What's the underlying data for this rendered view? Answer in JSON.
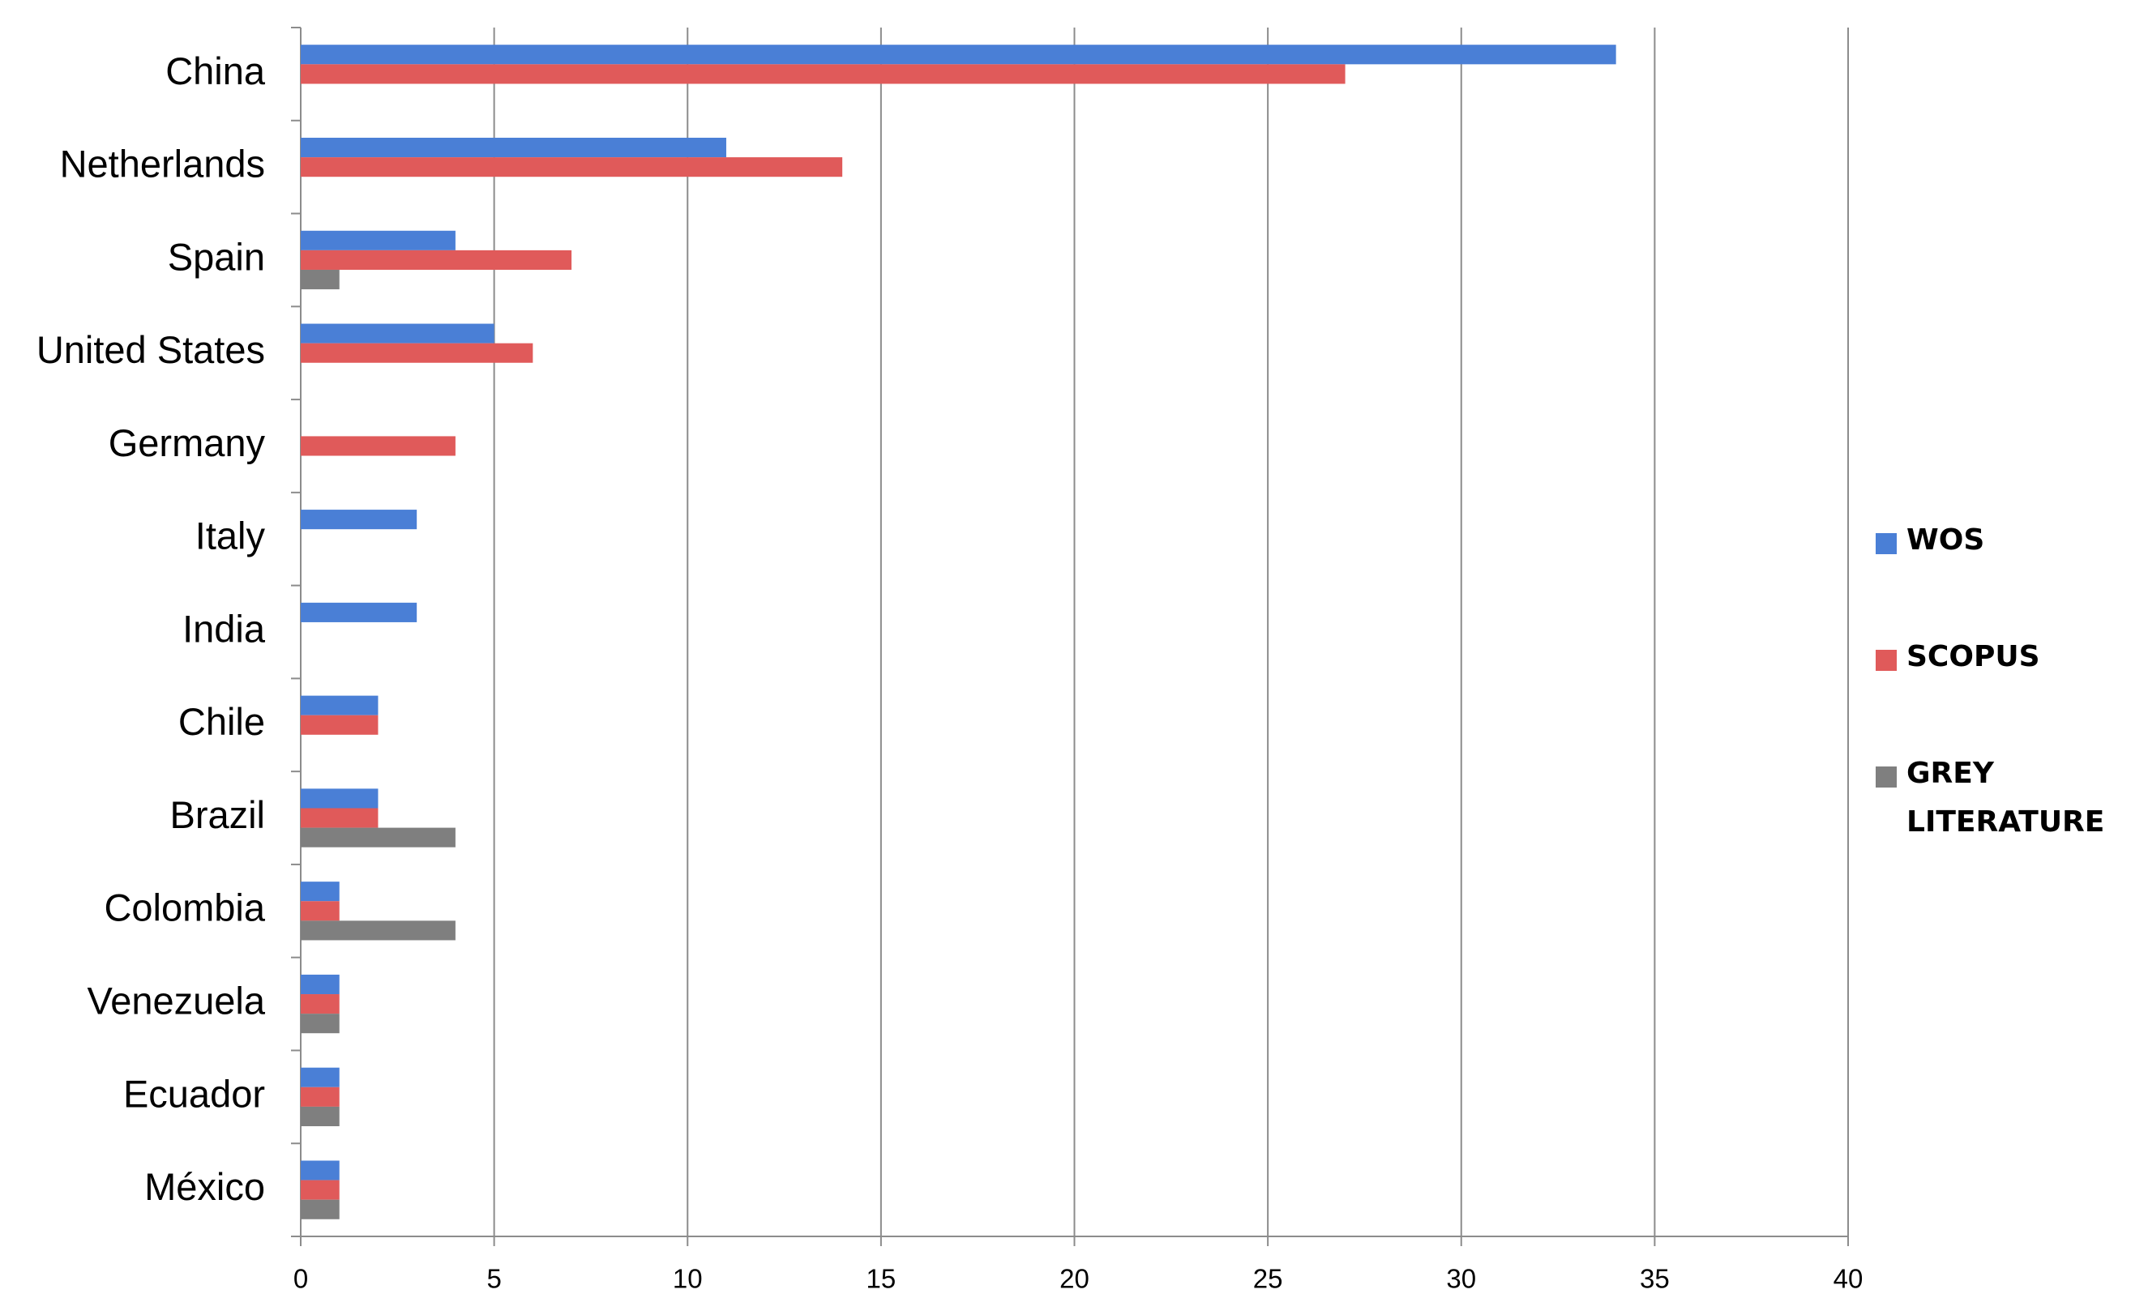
{
  "chart_data": {
    "type": "hbar",
    "categories": [
      "China",
      "Netherlands",
      "Spain",
      "United States",
      "Germany",
      "Italy",
      "India",
      "Chile",
      "Brazil",
      "Colombia",
      "Venezuela",
      "Ecuador",
      "México"
    ],
    "series": [
      {
        "name": "WOS",
        "color": "#4a7fd6",
        "values": [
          34,
          11,
          4,
          5,
          0,
          3,
          3,
          2,
          2,
          1,
          1,
          1,
          1
        ]
      },
      {
        "name": "SCOPUS",
        "color": "#e05a5a",
        "values": [
          27,
          14,
          7,
          6,
          4,
          0,
          0,
          2,
          2,
          1,
          1,
          1,
          1
        ]
      },
      {
        "name": "GREY LITERATURE",
        "color": "#7f7f7f",
        "values": [
          0,
          0,
          1,
          0,
          0,
          0,
          0,
          0,
          4,
          4,
          1,
          1,
          1
        ]
      }
    ],
    "xlim": [
      0,
      40
    ],
    "xticks": [
      0,
      5,
      10,
      15,
      20,
      25,
      30,
      35,
      40
    ],
    "grid": true,
    "legend": "right"
  }
}
